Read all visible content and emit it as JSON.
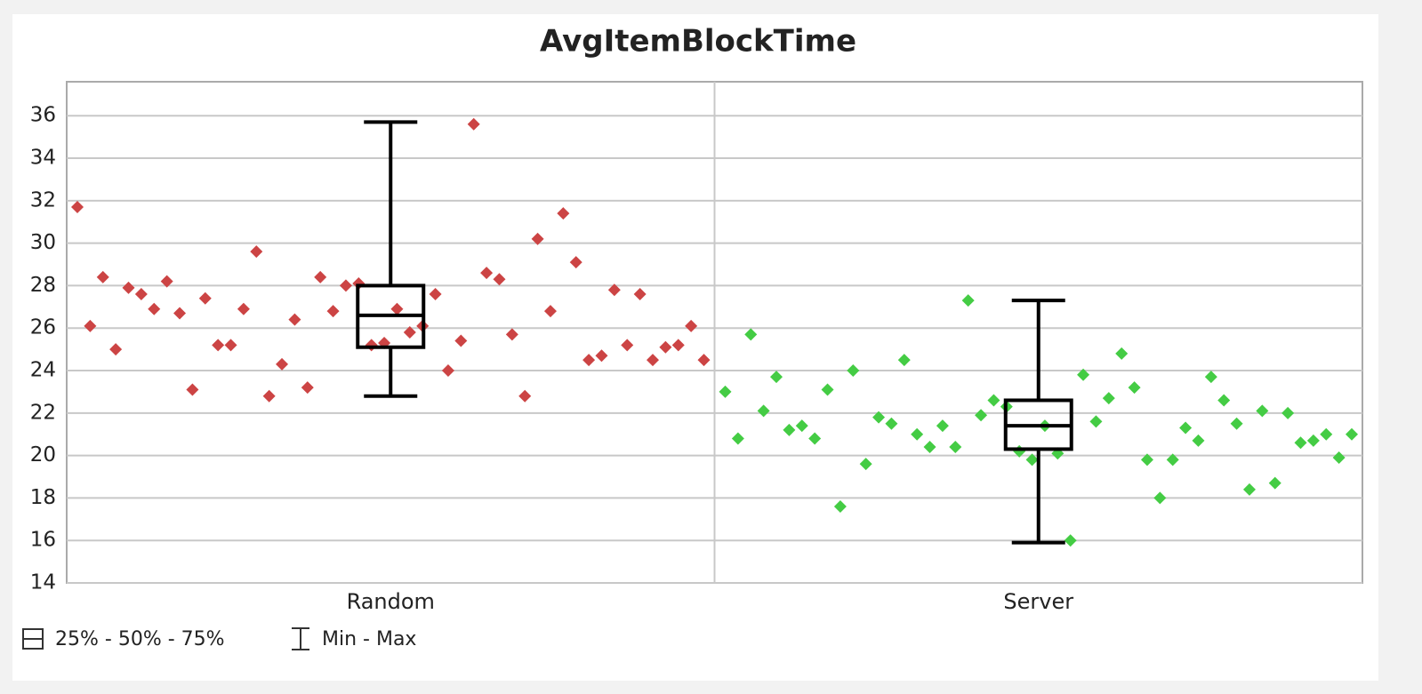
{
  "chart_data": {
    "type": "box",
    "title": "AvgItemBlockTime",
    "categories": [
      "Random",
      "Server"
    ],
    "ylim": [
      14,
      37.6
    ],
    "yticks": [
      14,
      16,
      18,
      20,
      22,
      24,
      26,
      28,
      30,
      32,
      34,
      36
    ],
    "grid": true,
    "boxes": [
      {
        "min": 22.8,
        "q1": 25.1,
        "median": 26.6,
        "q3": 28.0,
        "max": 35.7
      },
      {
        "min": 15.9,
        "q1": 20.3,
        "median": 21.4,
        "q3": 22.6,
        "max": 27.3
      }
    ],
    "points": [
      {
        "color": "#cc4444",
        "values": [
          31.7,
          26.1,
          28.4,
          25.0,
          27.9,
          27.6,
          26.9,
          28.2,
          26.7,
          23.1,
          27.4,
          25.2,
          25.2,
          26.9,
          29.6,
          22.8,
          24.3,
          26.4,
          23.2,
          28.4,
          26.8,
          28.0,
          28.1,
          25.2,
          25.3,
          26.9,
          25.8,
          26.1,
          27.6,
          24.0,
          25.4,
          35.6,
          28.6,
          28.3,
          25.7,
          22.8,
          30.2,
          26.8,
          31.4,
          29.1,
          24.5,
          24.7,
          27.8,
          25.2,
          27.6,
          24.5,
          25.1,
          25.2,
          26.1,
          24.5
        ]
      },
      {
        "color": "#44cc44",
        "values": [
          23.0,
          20.8,
          25.7,
          22.1,
          23.7,
          21.2,
          21.4,
          20.8,
          23.1,
          17.6,
          24.0,
          19.6,
          21.8,
          21.5,
          24.5,
          21.0,
          20.4,
          21.4,
          20.4,
          27.3,
          21.9,
          22.6,
          22.3,
          20.2,
          19.8,
          21.4,
          20.1,
          16.0,
          23.8,
          21.6,
          22.7,
          24.8,
          23.2,
          19.8,
          18.0,
          19.8,
          21.3,
          20.7,
          23.7,
          22.6,
          21.5,
          18.4,
          22.1,
          18.7,
          22.0,
          20.6,
          20.7,
          21.0,
          19.9,
          21.0
        ]
      }
    ],
    "legend_labels": {
      "box": "25% - 50% - 75%",
      "whisker": "Min - Max"
    }
  }
}
